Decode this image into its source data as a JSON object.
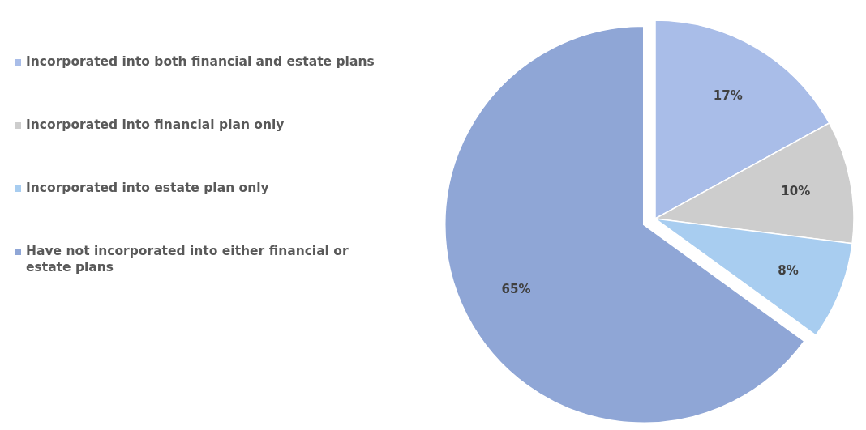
{
  "chart_data": {
    "type": "pie",
    "categories": [
      "Incorporated into both financial and estate plans",
      "Incorporated into financial plan only",
      "Incorporated into estate plan only",
      "Have not incorporated into either financial or estate plans"
    ],
    "values": [
      17,
      10,
      8,
      65
    ],
    "colors": [
      "#a9bde8",
      "#cdcdcd",
      "#a8cdf0",
      "#8fa6d6"
    ],
    "value_labels": [
      "17%",
      "10%",
      "8%",
      "65%"
    ],
    "legend": "left"
  }
}
